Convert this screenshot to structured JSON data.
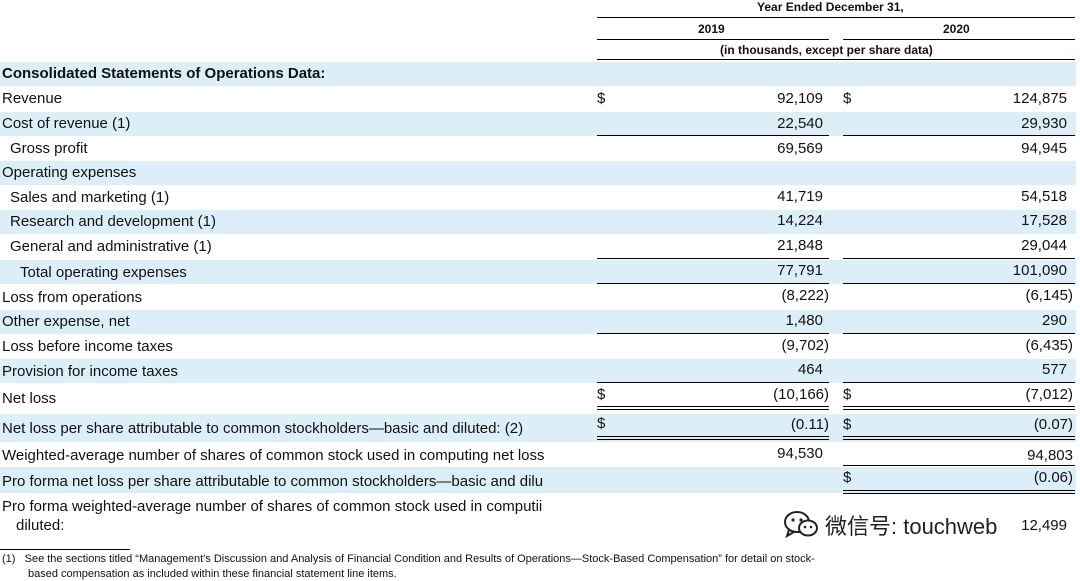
{
  "header": {
    "period": "Year Ended December 31,",
    "year1": "2019",
    "year2": "2020",
    "units": "(in thousands, except per share data)"
  },
  "section_title": "Consolidated Statements of Operations Data:",
  "rows": [
    {
      "label": "Revenue",
      "d1": "$",
      "v1": "92,109",
      "d2": "$",
      "v2": "124,875"
    },
    {
      "label": "Cost of revenue (1)",
      "d1": "",
      "v1": "22,540",
      "d2": "",
      "v2": "29,930"
    },
    {
      "label": "Gross profit",
      "d1": "",
      "v1": "69,569",
      "d2": "",
      "v2": "94,945"
    },
    {
      "label": "Operating expenses",
      "d1": "",
      "v1": "",
      "d2": "",
      "v2": ""
    },
    {
      "label": "Sales and marketing (1)",
      "d1": "",
      "v1": "41,719",
      "d2": "",
      "v2": "54,518"
    },
    {
      "label": "Research and development (1)",
      "d1": "",
      "v1": "14,224",
      "d2": "",
      "v2": "17,528"
    },
    {
      "label": "General and administrative (1)",
      "d1": "",
      "v1": "21,848",
      "d2": "",
      "v2": "29,044"
    },
    {
      "label": "Total operating expenses",
      "d1": "",
      "v1": "77,791",
      "d2": "",
      "v2": "101,090"
    },
    {
      "label": "Loss from operations",
      "d1": "",
      "v1": "(8,222)",
      "d2": "",
      "v2": "(6,145)"
    },
    {
      "label": "Other expense, net",
      "d1": "",
      "v1": "1,480",
      "d2": "",
      "v2": "290"
    },
    {
      "label": "Loss before income taxes",
      "d1": "",
      "v1": "(9,702)",
      "d2": "",
      "v2": "(6,435)"
    },
    {
      "label": "Provision for income taxes",
      "d1": "",
      "v1": "464",
      "d2": "",
      "v2": "577"
    },
    {
      "label": "Net loss",
      "d1": "$",
      "v1": "(10,166)",
      "d2": "$",
      "v2": "(7,012)"
    },
    {
      "label": "Net loss per share attributable to common stockholders—basic and diluted: (2)",
      "d1": "$",
      "v1": "(0.11)",
      "d2": "$",
      "v2": "(0.07)"
    },
    {
      "label": "Weighted-average number of shares of common stock used in computing net loss",
      "d1": "",
      "v1": "94,530",
      "d2": "",
      "v2": "94,803"
    },
    {
      "label": "Pro forma net loss per share attributable to common stockholders—basic and dilu",
      "d1": "",
      "v1": "",
      "d2": "$",
      "v2": "(0.06)"
    },
    {
      "label": "Pro forma weighted-average number of shares of common stock used in computii",
      "label2": "diluted:",
      "d1": "",
      "v1": "",
      "d2": "",
      "v2": "12,499"
    }
  ],
  "footnote": {
    "line1": "(1)   See the sections titled “Management's Discussion and Analysis of Financial Condition and Results of Operations—Stock-Based Compensation” for detail on stock-",
    "line2": "based compensation as included within these financial statement line items."
  },
  "watermark": {
    "icon": "wechat-icon",
    "text": "微信号: touchweb"
  }
}
